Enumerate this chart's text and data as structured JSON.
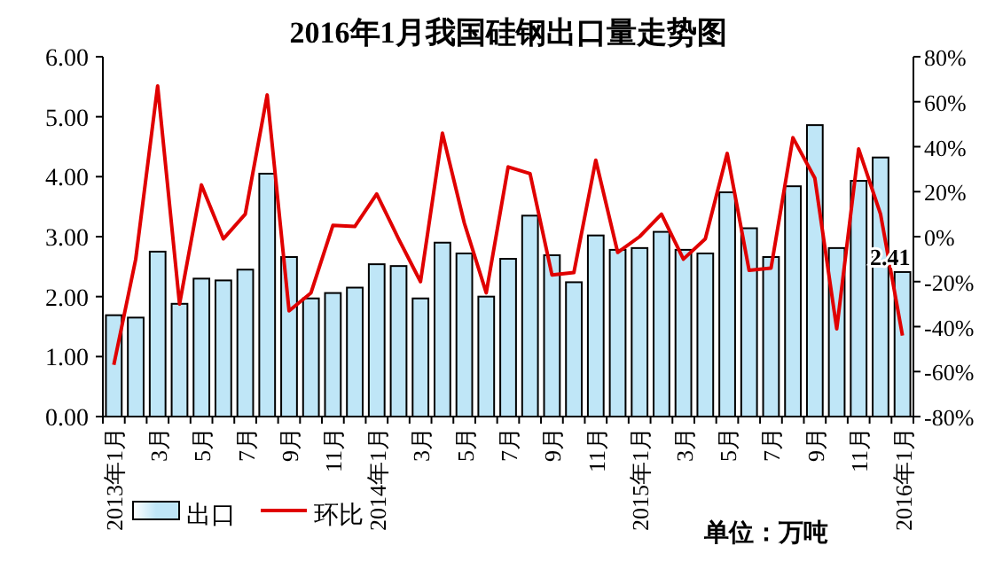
{
  "chart_data": {
    "type": "bar",
    "title": "2016年1月我国硅钢出口量走势图",
    "categories": [
      "2013年1月",
      null,
      "3月",
      null,
      "5月",
      null,
      "7月",
      null,
      "9月",
      null,
      "11月",
      null,
      "2014年1月",
      null,
      "3月",
      null,
      "5月",
      null,
      "7月",
      null,
      "9月",
      null,
      "11月",
      null,
      "2015年1月",
      null,
      "3月",
      null,
      "5月",
      null,
      "7月",
      null,
      "9月",
      null,
      "11月",
      null,
      "2016年1月"
    ],
    "series": [
      {
        "name": "出口",
        "color": "#bfe6f7",
        "values": [
          1.69,
          1.65,
          2.75,
          1.88,
          2.3,
          2.27,
          2.45,
          4.05,
          2.66,
          1.97,
          2.06,
          2.15,
          2.54,
          2.51,
          1.97,
          2.9,
          2.72,
          2.0,
          2.63,
          3.35,
          2.69,
          2.24,
          3.02,
          2.78,
          2.81,
          3.08,
          2.78,
          2.72,
          3.74,
          3.14,
          2.66,
          3.84,
          4.86,
          2.81,
          3.93,
          4.32,
          2.41
        ],
        "value_labels": [
          null,
          null,
          null,
          null,
          null,
          null,
          null,
          null,
          null,
          null,
          null,
          null,
          null,
          null,
          null,
          null,
          null,
          null,
          null,
          null,
          null,
          null,
          null,
          null,
          null,
          null,
          null,
          null,
          null,
          null,
          null,
          null,
          null,
          null,
          null,
          null,
          "2.41"
        ]
      },
      {
        "name": "环比",
        "type": "line",
        "axis": "y2",
        "color": "#e00000",
        "values": [
          -57,
          -10,
          67,
          -30,
          23,
          -1,
          10,
          63,
          -33,
          -25,
          5,
          4.5,
          19,
          -1,
          -20,
          46,
          6,
          -25,
          31,
          28,
          -17,
          -16,
          34,
          -7,
          0,
          10,
          -10,
          -1,
          37,
          -15,
          -14,
          44,
          26,
          -41,
          39,
          10,
          -44
        ]
      }
    ],
    "ylim": [
      0,
      6
    ],
    "yticks": [
      {
        "value": 0,
        "label": "0.00"
      },
      {
        "value": 1,
        "label": "1.00"
      },
      {
        "value": 2,
        "label": "2.00"
      },
      {
        "value": 3,
        "label": "3.00"
      },
      {
        "value": 4,
        "label": "4.00"
      },
      {
        "value": 5,
        "label": "5.00"
      },
      {
        "value": 6,
        "label": "6.00"
      }
    ],
    "y2lim": [
      -80,
      80
    ],
    "y2ticks": [
      {
        "value": -80,
        "label": "-80%"
      },
      {
        "value": -60,
        "label": "-60%"
      },
      {
        "value": -40,
        "label": "-40%"
      },
      {
        "value": -20,
        "label": "-20%"
      },
      {
        "value": 0,
        "label": "0%"
      },
      {
        "value": 20,
        "label": "20%"
      },
      {
        "value": 40,
        "label": "40%"
      },
      {
        "value": 60,
        "label": "60%"
      },
      {
        "value": 80,
        "label": "80%"
      }
    ],
    "legend": "bottom left",
    "annotations": [
      "单位：万吨"
    ]
  }
}
